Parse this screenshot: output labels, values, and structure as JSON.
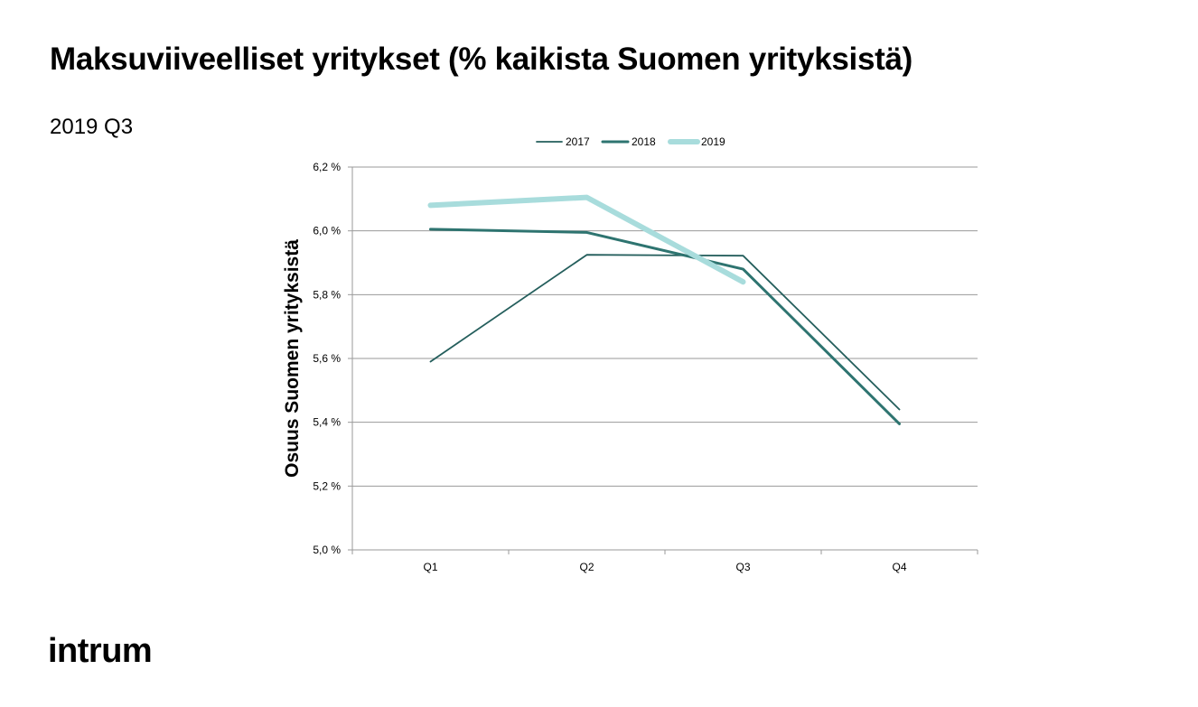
{
  "slide": {
    "title": "Maksuviiveelliset yritykset (% kaikista Suomen yrityksistä)",
    "subtitle": "2019 Q3",
    "logo": "intrum"
  },
  "chart_data": {
    "type": "line",
    "categories": [
      "Q1",
      "Q2",
      "Q3",
      "Q4"
    ],
    "ylabel": "Osuus Suomen yrityksistä",
    "ylim": [
      5.0,
      6.2
    ],
    "yticks": [
      5.0,
      5.2,
      5.4,
      5.6,
      5.8,
      6.0,
      6.2
    ],
    "ytick_labels": [
      "5,0 %",
      "5,2 %",
      "5,4 %",
      "5,6 %",
      "5,8 %",
      "6,0 %",
      "6,2 %"
    ],
    "grid": true,
    "legend": "top",
    "series": [
      {
        "name": "2017",
        "color": "#245e5c",
        "values": [
          5.59,
          5.925,
          5.922,
          5.44
        ]
      },
      {
        "name": "2018",
        "color": "#2e7470",
        "values": [
          6.005,
          5.995,
          5.88,
          5.395
        ]
      },
      {
        "name": "2019",
        "color": "#a8dcdc",
        "values": [
          6.08,
          6.105,
          5.84,
          null
        ]
      }
    ]
  }
}
